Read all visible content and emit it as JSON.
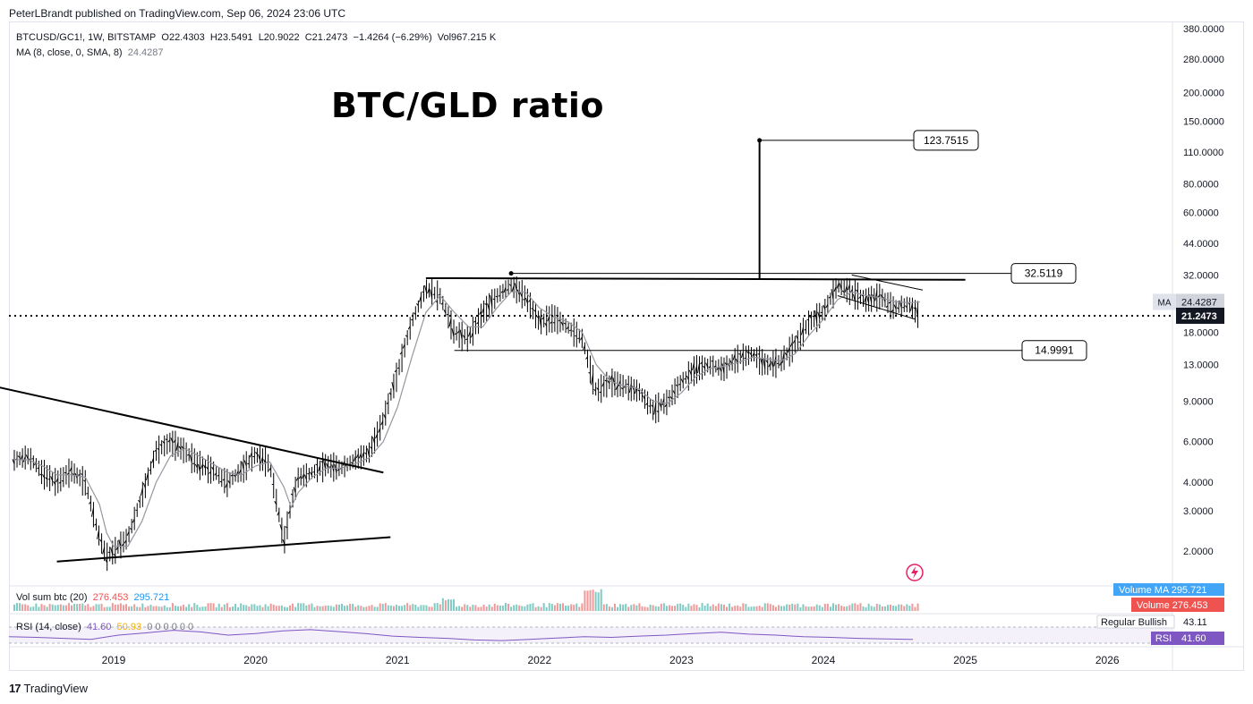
{
  "header": {
    "published": "PeterLBrandt published on TradingView.com, Sep 06, 2024 23:06 UTC"
  },
  "symbol_info": {
    "symbol": "BTCUSD/GC1!, 1W, BITSTAMP",
    "open": "O22.4303",
    "high": "H23.5491",
    "low": "L20.9022",
    "close": "C21.2473",
    "change": "−1.4264 (−6.29%)",
    "volume": "Vol967.215 K"
  },
  "ma_info": {
    "label": "MA (8, close, 0, SMA, 8)",
    "value": "24.4287"
  },
  "volume_info": {
    "label": "Vol sum btc (20)",
    "value1": "276.453",
    "value2": "295.721"
  },
  "rsi_info": {
    "label": "RSI (14, close)",
    "value1": "41.60",
    "value2": "50.93",
    "extras": "0 0 0 0 0 0"
  },
  "footer": {
    "brand": "TradingView"
  },
  "colors": {
    "volume_ma": "#42a5f5",
    "volume": "#ef5350",
    "rsi": "#7e57c2",
    "price_up": "#000000",
    "ma_line": "#9598a1"
  },
  "chart_data": [
    {
      "type": "candlestick",
      "title": "BTC/GLD ratio",
      "y_scale": "log",
      "y_ticks": [
        "380.0000",
        "280.0000",
        "200.0000",
        "150.0000",
        "110.0000",
        "80.0000",
        "60.0000",
        "44.0000",
        "32.0000",
        "18.0000",
        "13.0000",
        "9.0000",
        "6.0000",
        "4.0000",
        "3.0000",
        "2.0000"
      ],
      "x_ticks": [
        "2019",
        "2020",
        "2021",
        "2022",
        "2023",
        "2024",
        "2025",
        "2026"
      ],
      "price_labels": {
        "ma_tag": "MA",
        "ma_value": "24.4287",
        "last_price": "21.2473"
      },
      "annotations": [
        {
          "label": "123.7515",
          "value": 123.7515
        },
        {
          "label": "32.5119",
          "value": 32.5119
        },
        {
          "label": "14.9991",
          "value": 14.9991
        }
      ],
      "x": [
        2018.3,
        2018.4,
        2018.5,
        2018.6,
        2018.7,
        2018.8,
        2018.9,
        2018.95,
        2019.0,
        2019.1,
        2019.2,
        2019.3,
        2019.4,
        2019.5,
        2019.6,
        2019.7,
        2019.8,
        2019.9,
        2020.0,
        2020.1,
        2020.2,
        2020.25,
        2020.3,
        2020.4,
        2020.5,
        2020.6,
        2020.7,
        2020.8,
        2020.9,
        2021.0,
        2021.1,
        2021.2,
        2021.3,
        2021.4,
        2021.5,
        2021.6,
        2021.7,
        2021.8,
        2021.9,
        2022.0,
        2022.1,
        2022.2,
        2022.3,
        2022.4,
        2022.5,
        2022.6,
        2022.7,
        2022.8,
        2022.9,
        2023.0,
        2023.1,
        2023.2,
        2023.3,
        2023.4,
        2023.5,
        2023.6,
        2023.7,
        2023.8,
        2023.9,
        2024.0,
        2024.1,
        2024.2,
        2024.3,
        2024.4,
        2024.5,
        2024.6,
        2024.68
      ],
      "series": [
        {
          "name": "BTCUSD/GC1!",
          "values": [
            5.0,
            5.2,
            4.4,
            4.0,
            4.5,
            4.0,
            2.3,
            1.9,
            2.0,
            2.3,
            3.5,
            5.5,
            6.0,
            5.5,
            4.8,
            4.5,
            4.0,
            4.5,
            5.3,
            4.8,
            2.2,
            3.2,
            4.2,
            4.4,
            4.8,
            4.6,
            5.0,
            5.4,
            7.5,
            12.0,
            20.0,
            28.0,
            26.0,
            18.0,
            17.0,
            22.0,
            26.0,
            29.0,
            26.0,
            20.0,
            21.0,
            19.0,
            17.0,
            10.0,
            11.0,
            10.5,
            10.0,
            8.3,
            9.0,
            11.0,
            12.5,
            13.0,
            12.5,
            14.0,
            14.5,
            13.0,
            13.5,
            16.0,
            20.0,
            22.0,
            29.0,
            27.0,
            25.0,
            26.0,
            23.0,
            24.0,
            21.25
          ]
        },
        {
          "name": "MA (8, close, 0, SMA, 8)",
          "values": [
            5.0,
            5.0,
            4.7,
            4.3,
            4.3,
            4.2,
            3.2,
            2.4,
            2.1,
            2.1,
            2.7,
            4.0,
            5.2,
            5.6,
            5.2,
            4.8,
            4.4,
            4.3,
            4.7,
            4.9,
            3.8,
            3.1,
            3.6,
            4.2,
            4.6,
            4.6,
            4.8,
            5.1,
            6.0,
            8.5,
            14.0,
            22.0,
            26.0,
            22.0,
            19.0,
            19.0,
            23.0,
            27.0,
            27.0,
            23.0,
            21.0,
            20.0,
            18.0,
            13.0,
            11.0,
            10.5,
            10.2,
            9.0,
            8.8,
            9.8,
            11.5,
            12.5,
            12.8,
            13.3,
            14.0,
            13.8,
            13.5,
            14.5,
            17.5,
            20.5,
            25.0,
            27.0,
            26.0,
            25.5,
            24.5,
            24.2,
            24.43
          ]
        }
      ]
    },
    {
      "type": "bar",
      "title": "Vol sum btc (20)",
      "series": [
        {
          "name": "Volume",
          "values": [
            276.453
          ]
        },
        {
          "name": "Volume MA",
          "values": [
            295.721
          ]
        }
      ],
      "price_labels": {
        "volume_ma_tag": "Volume MA",
        "volume_ma_value": "295.721",
        "volume_tag": "Volume",
        "volume_value": "276.453"
      }
    },
    {
      "type": "line",
      "title": "RSI (14, close)",
      "series": [
        {
          "name": "RSI",
          "values": [
            50,
            48,
            45,
            42,
            55,
            62,
            70,
            65,
            55,
            60,
            68,
            72,
            66,
            60,
            52,
            48,
            45,
            40,
            38,
            42,
            46,
            50,
            48,
            52,
            55,
            60,
            64,
            58,
            55,
            50,
            48,
            45,
            43,
            41.6
          ]
        }
      ],
      "price_labels": {
        "regular_bullish_tag": "Regular Bullish",
        "regular_bullish_value": "43.11",
        "rsi_tag": "RSI",
        "rsi_value": "41.60"
      }
    }
  ]
}
